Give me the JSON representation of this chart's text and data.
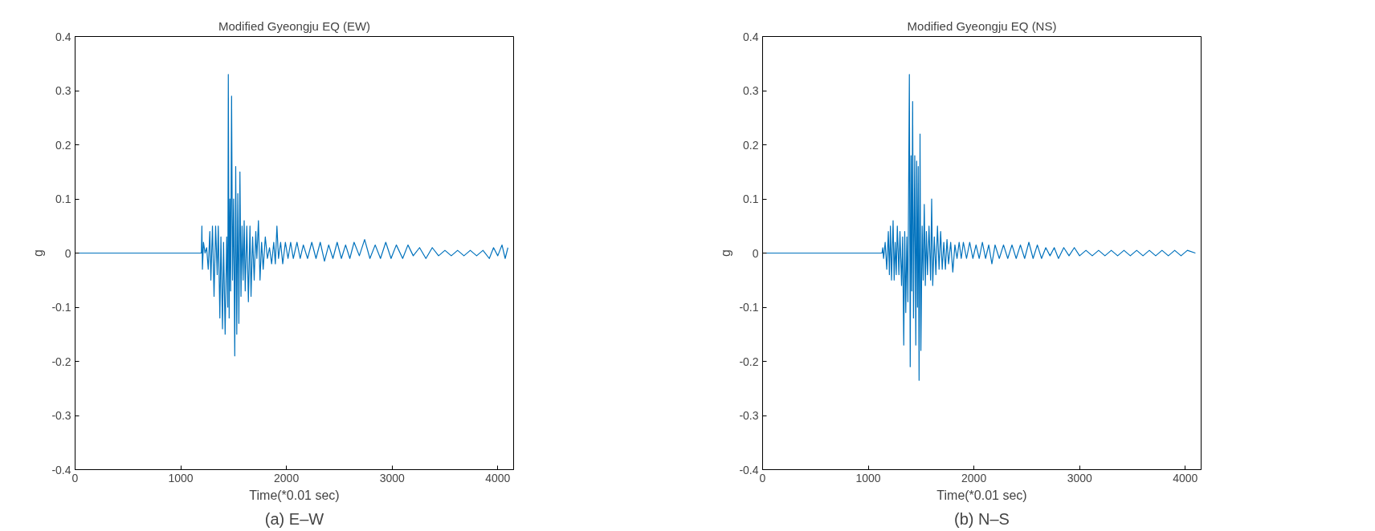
{
  "chart_data": [
    {
      "type": "line",
      "title": "Modified Gyeongju EQ (EW)",
      "xlabel": "Time(*0.01 sec)",
      "ylabel": "g",
      "annotations": [
        "(a) E–W"
      ],
      "xlim": [
        0,
        4150
      ],
      "ylim": [
        -0.4,
        0.4
      ],
      "xticks": [
        0,
        1000,
        2000,
        3000,
        4000
      ],
      "yticks": [
        -0.4,
        -0.3,
        -0.2,
        -0.1,
        0,
        0.1,
        0.2,
        0.3,
        0.4
      ],
      "line_style": "solid",
      "series": [
        {
          "color": "#0072bd",
          "x": [
            0,
            1195,
            1200,
            1205,
            1215,
            1230,
            1245,
            1260,
            1275,
            1285,
            1300,
            1315,
            1330,
            1345,
            1355,
            1370,
            1380,
            1395,
            1405,
            1420,
            1435,
            1445,
            1450,
            1458,
            1465,
            1472,
            1481,
            1490,
            1500,
            1511,
            1520,
            1530,
            1540,
            1550,
            1560,
            1570,
            1580,
            1590,
            1600,
            1610,
            1625,
            1640,
            1655,
            1665,
            1680,
            1695,
            1710,
            1720,
            1735,
            1750,
            1765,
            1780,
            1800,
            1820,
            1840,
            1860,
            1880,
            1895,
            1910,
            1925,
            1945,
            1965,
            1990,
            2015,
            2040,
            2065,
            2100,
            2130,
            2160,
            2200,
            2240,
            2280,
            2320,
            2360,
            2400,
            2440,
            2480,
            2520,
            2560,
            2600,
            2640,
            2690,
            2740,
            2790,
            2840,
            2890,
            2940,
            2990,
            3040,
            3100,
            3150,
            3200,
            3260,
            3320,
            3380,
            3440,
            3500,
            3560,
            3620,
            3680,
            3740,
            3800,
            3860,
            3920,
            3960,
            4000,
            4040,
            4070,
            4096
          ],
          "values": [
            0,
            0,
            0.05,
            -0.03,
            0.02,
            0.0,
            0.01,
            -0.03,
            0.04,
            -0.05,
            0.05,
            -0.08,
            0.05,
            -0.04,
            0.05,
            -0.12,
            0.03,
            -0.14,
            0.02,
            -0.15,
            0.03,
            -0.1,
            0.33,
            -0.12,
            0.1,
            -0.07,
            0.29,
            -0.05,
            0.1,
            -0.19,
            0.16,
            -0.15,
            0.11,
            -0.13,
            0.15,
            -0.08,
            0.05,
            -0.05,
            0.06,
            -0.07,
            0.05,
            -0.09,
            0.05,
            -0.08,
            0.03,
            -0.05,
            0.04,
            -0.01,
            0.06,
            -0.05,
            0.02,
            -0.03,
            0.03,
            -0.01,
            0.01,
            -0.02,
            0.02,
            -0.02,
            0.05,
            -0.01,
            0.02,
            -0.02,
            0.02,
            -0.01,
            0.02,
            -0.01,
            0.02,
            -0.01,
            0.015,
            -0.01,
            0.02,
            -0.01,
            0.02,
            -0.015,
            0.015,
            -0.01,
            0.02,
            -0.01,
            0.015,
            -0.01,
            0.02,
            -0.005,
            0.025,
            -0.01,
            0.015,
            -0.01,
            0.02,
            -0.01,
            0.015,
            -0.01,
            0.015,
            -0.005,
            0.01,
            -0.01,
            0.01,
            -0.005,
            0.005,
            -0.005,
            0.005,
            -0.005,
            0.005,
            -0.005,
            0.005,
            -0.01,
            0.01,
            -0.005,
            0.015,
            -0.01,
            0.01
          ]
        }
      ]
    },
    {
      "type": "line",
      "title": "Modified Gyeongju EQ (NS)",
      "xlabel": "Time(*0.01 sec)",
      "ylabel": "g",
      "annotations": [
        "(b) N–S"
      ],
      "xlim": [
        0,
        4150
      ],
      "ylim": [
        -0.4,
        0.4
      ],
      "xticks": [
        0,
        1000,
        2000,
        3000,
        4000
      ],
      "yticks": [
        -0.4,
        -0.3,
        -0.2,
        -0.1,
        0,
        0.1,
        0.2,
        0.3,
        0.4
      ],
      "line_style": "solid",
      "series": [
        {
          "color": "#0072bd",
          "x": [
            0,
            1130,
            1137,
            1145,
            1160,
            1175,
            1190,
            1200,
            1210,
            1220,
            1235,
            1245,
            1255,
            1265,
            1275,
            1290,
            1300,
            1315,
            1325,
            1336,
            1345,
            1355,
            1365,
            1375,
            1389,
            1397,
            1405,
            1412,
            1420,
            1428,
            1440,
            1450,
            1458,
            1466,
            1473,
            1481,
            1490,
            1498,
            1510,
            1520,
            1530,
            1540,
            1550,
            1560,
            1575,
            1590,
            1600,
            1610,
            1625,
            1640,
            1655,
            1670,
            1685,
            1700,
            1715,
            1730,
            1745,
            1760,
            1780,
            1800,
            1820,
            1840,
            1860,
            1880,
            1900,
            1930,
            1960,
            1990,
            2020,
            2050,
            2080,
            2110,
            2140,
            2170,
            2200,
            2240,
            2280,
            2320,
            2360,
            2400,
            2440,
            2480,
            2520,
            2560,
            2600,
            2640,
            2680,
            2720,
            2760,
            2800,
            2850,
            2900,
            2950,
            3000,
            3060,
            3120,
            3180,
            3240,
            3300,
            3360,
            3420,
            3480,
            3540,
            3600,
            3660,
            3720,
            3780,
            3840,
            3900,
            3960,
            4020,
            4096
          ],
          "values": [
            0,
            0,
            0.01,
            -0.01,
            0.02,
            -0.03,
            0.04,
            -0.04,
            0.05,
            -0.05,
            0.06,
            -0.05,
            0.02,
            -0.04,
            0.05,
            -0.04,
            0.04,
            -0.06,
            0.03,
            -0.17,
            0.04,
            -0.11,
            0.03,
            -0.09,
            0.33,
            -0.21,
            0.18,
            -0.07,
            0.28,
            -0.12,
            0.18,
            -0.17,
            0.17,
            -0.1,
            0.16,
            -0.235,
            0.22,
            -0.18,
            0.05,
            -0.05,
            0.09,
            -0.06,
            0.04,
            -0.04,
            0.05,
            -0.05,
            0.1,
            -0.06,
            0.03,
            -0.04,
            0.05,
            -0.03,
            0.04,
            -0.03,
            0.02,
            -0.03,
            0.025,
            -0.02,
            0.02,
            -0.035,
            0.015,
            -0.01,
            0.02,
            -0.01,
            0.02,
            -0.01,
            0.02,
            -0.01,
            0.015,
            -0.01,
            0.02,
            -0.01,
            0.015,
            -0.02,
            0.015,
            -0.01,
            0.015,
            -0.01,
            0.015,
            -0.01,
            0.015,
            -0.01,
            0.02,
            -0.01,
            0.015,
            -0.01,
            0.01,
            -0.005,
            0.01,
            -0.01,
            0.01,
            -0.005,
            0.01,
            -0.005,
            0.005,
            -0.005,
            0.005,
            -0.005,
            0.005,
            -0.005,
            0.005,
            -0.005,
            0.005,
            -0.005,
            0.005,
            -0.005,
            0.005,
            -0.005,
            0.005,
            -0.005,
            0.005,
            0
          ]
        }
      ]
    }
  ]
}
